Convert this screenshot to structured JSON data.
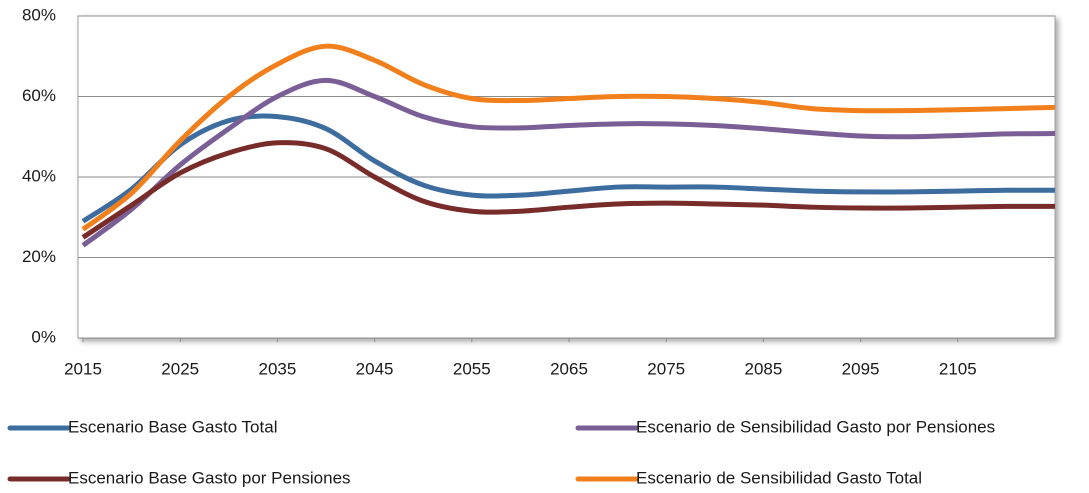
{
  "chart_data": {
    "type": "line",
    "x": [
      2015,
      2020,
      2025,
      2030,
      2035,
      2040,
      2045,
      2050,
      2055,
      2060,
      2065,
      2070,
      2075,
      2080,
      2085,
      2090,
      2095,
      2100,
      2105,
      2110,
      2115
    ],
    "xlim": [
      2015,
      2115
    ],
    "xticks": [
      2015,
      2025,
      2035,
      2045,
      2055,
      2065,
      2075,
      2085,
      2095,
      2105
    ],
    "ylim": [
      0,
      80
    ],
    "yticks": [
      {
        "value": 0,
        "label": "0%"
      },
      {
        "value": 20,
        "label": "20%"
      },
      {
        "value": 40,
        "label": "40%"
      },
      {
        "value": 60,
        "label": "60%"
      },
      {
        "value": 80,
        "label": "80%"
      }
    ],
    "grid": true,
    "legend": "bottom",
    "series": [
      {
        "name": "Escenario Base Gasto Total",
        "color": "#3d6d9e",
        "values": [
          29,
          37,
          48,
          54,
          55,
          52,
          44,
          38,
          35.5,
          35.5,
          36.5,
          37.5,
          37.5,
          37.5,
          37,
          36.5,
          36.3,
          36.3,
          36.5,
          36.7,
          36.7
        ]
      },
      {
        "name": "Escenario de Sensibilidad Gasto por Pensiones",
        "color": "#7a5f97",
        "values": [
          23,
          32,
          43,
          52,
          60,
          64,
          60,
          55,
          52.5,
          52.2,
          52.8,
          53.2,
          53.2,
          52.8,
          52,
          51,
          50.2,
          50,
          50.3,
          50.7,
          50.8
        ]
      },
      {
        "name": "Escenario Base Gasto por Pensiones",
        "color": "#772c2a",
        "values": [
          25,
          33,
          41,
          46,
          48.5,
          47,
          40,
          34,
          31.5,
          31.5,
          32.5,
          33.3,
          33.5,
          33.3,
          33,
          32.5,
          32.3,
          32.3,
          32.5,
          32.7,
          32.7
        ]
      },
      {
        "name": "Escenario de Sensibilidad Gasto Total",
        "color": "#f07f1c",
        "values": [
          27,
          36,
          49,
          60,
          68,
          72.5,
          69,
          63,
          59.5,
          59,
          59.5,
          60,
          60,
          59.5,
          58.5,
          57,
          56.5,
          56.5,
          56.7,
          57,
          57.3
        ]
      }
    ]
  }
}
